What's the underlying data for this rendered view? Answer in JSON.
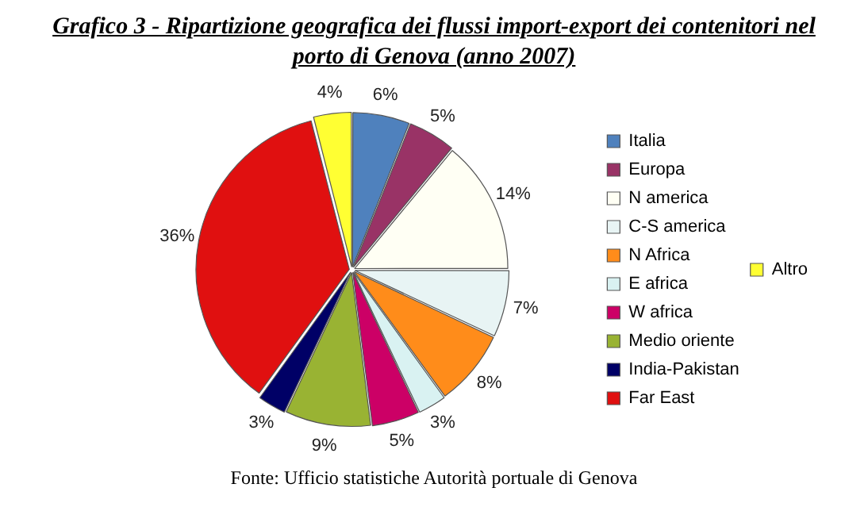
{
  "chart_data": {
    "type": "pie",
    "title": "Grafico 3 - Ripartizione geografica dei flussi import-export dei contenitori nel porto di Genova (anno 2007)",
    "categories": [
      "Italia",
      "Europa",
      "N america",
      "C-S america",
      "N Africa",
      "E africa",
      "W africa",
      "Medio oriente",
      "India-Pakistan",
      "Far East",
      "Altro"
    ],
    "values": [
      6,
      5,
      14,
      7,
      8,
      3,
      5,
      9,
      3,
      36,
      4
    ],
    "value_labels": [
      "6%",
      "5%",
      "14%",
      "7%",
      "8%",
      "3%",
      "5%",
      "9%",
      "3%",
      "36%",
      "4%"
    ],
    "colors": [
      "#4f81bd",
      "#993366",
      "#fffff4",
      "#e8f4f4",
      "#ff8c1a",
      "#d9f2f2",
      "#cc0066",
      "#99b333",
      "#000066",
      "#e01010",
      "#ffff33"
    ],
    "legend": "right",
    "annotations": [
      "Fonte: Ufficio statistiche Autorità portuale di Genova"
    ]
  }
}
